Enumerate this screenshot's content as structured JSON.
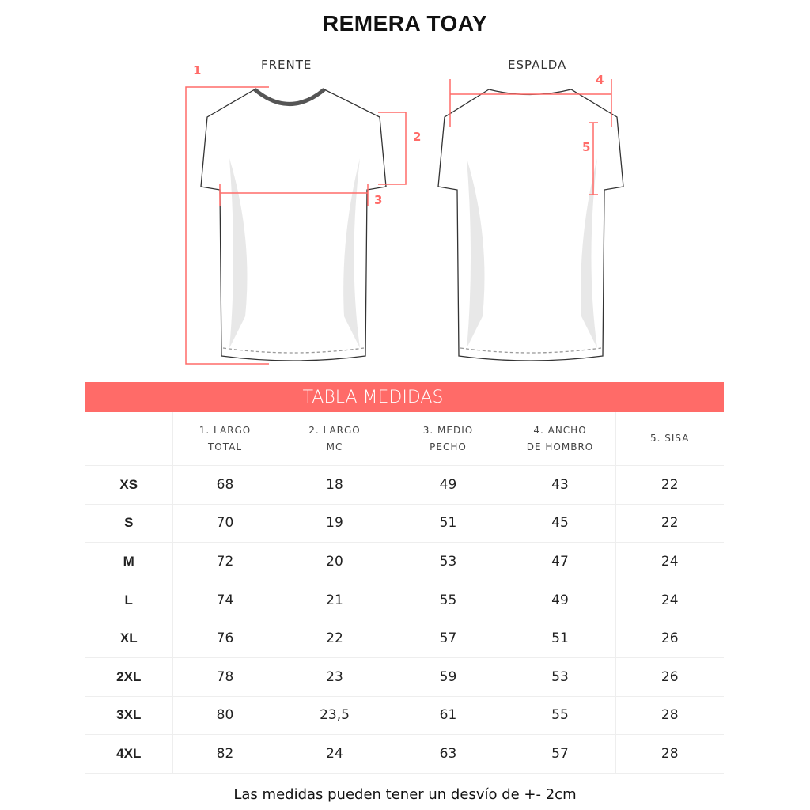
{
  "title": "REMERA TOAY",
  "views": {
    "front": "FRENTE",
    "back": "ESPALDA"
  },
  "markers": [
    "1",
    "2",
    "3",
    "4",
    "5"
  ],
  "accent_color": "#ff6b68",
  "table": {
    "title": "TABLA MEDIDAS",
    "columns": [
      {
        "line1": "1. LARGO",
        "line2": "TOTAL"
      },
      {
        "line1": "2. LARGO",
        "line2": "MC"
      },
      {
        "line1": "3. MEDIO",
        "line2": "PECHO"
      },
      {
        "line1": "4. ANCHO",
        "line2": "DE HOMBRO"
      },
      {
        "line1": "5. SISA",
        "line2": ""
      }
    ],
    "rows": [
      {
        "size": "XS",
        "values": [
          "68",
          "18",
          "49",
          "43",
          "22"
        ]
      },
      {
        "size": "S",
        "values": [
          "70",
          "19",
          "51",
          "45",
          "22"
        ]
      },
      {
        "size": "M",
        "values": [
          "72",
          "20",
          "53",
          "47",
          "24"
        ]
      },
      {
        "size": "L",
        "values": [
          "74",
          "21",
          "55",
          "49",
          "24"
        ]
      },
      {
        "size": "XL",
        "values": [
          "76",
          "22",
          "57",
          "51",
          "26"
        ]
      },
      {
        "size": "2XL",
        "values": [
          "78",
          "23",
          "59",
          "53",
          "26"
        ]
      },
      {
        "size": "3XL",
        "values": [
          "80",
          "23,5",
          "61",
          "55",
          "28"
        ]
      },
      {
        "size": "4XL",
        "values": [
          "82",
          "24",
          "63",
          "57",
          "28"
        ]
      }
    ]
  },
  "note": "Las medidas pueden tener un desvío de +- 2cm"
}
